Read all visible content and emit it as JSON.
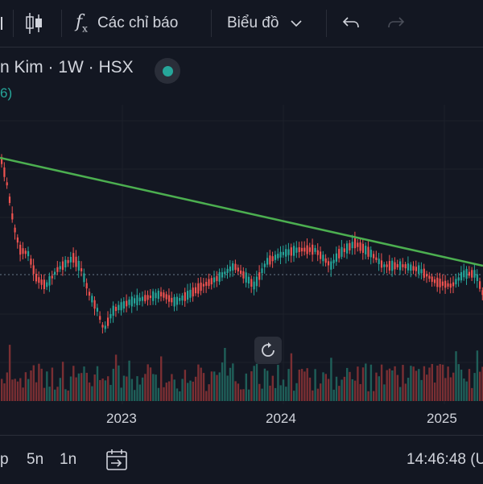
{
  "toolbar": {
    "indicators_label": "Các chỉ báo",
    "chart_label": "Biểu đồ"
  },
  "legend": {
    "symbol_text": "n Kim · 1W · HSX",
    "sub_text": "6)"
  },
  "chart_data": {
    "type": "candlestick",
    "x_tick_labels": [
      "2023",
      "2024",
      "2025"
    ],
    "trendline_color": "#4caf50",
    "up_color": "#26a69a",
    "down_color": "#ef5350"
  },
  "bottom": {
    "ranges": [
      "p",
      "5n",
      "1n"
    ],
    "time": "14:46:48 (U"
  }
}
